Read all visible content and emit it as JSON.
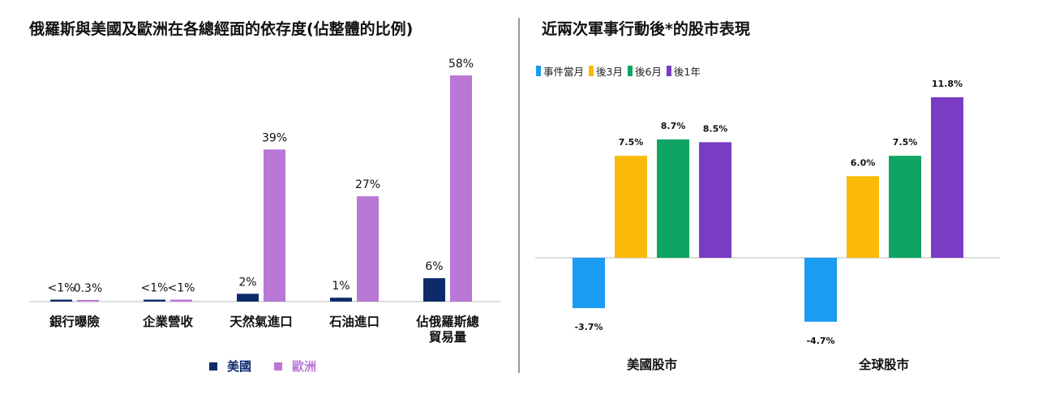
{
  "left": {
    "title": "俄羅斯與美國及歐洲在各總經面的依存度(佔整體的比例)",
    "chart_data": {
      "type": "bar",
      "categories": [
        "銀行曝險",
        "企業營收",
        "天然氣進口",
        "石油進口",
        "佔俄羅斯總\n貿易量"
      ],
      "series": [
        {
          "name": "美國",
          "color": "#0d2b6b",
          "values": [
            0.5,
            0.5,
            2,
            1,
            6
          ],
          "labels": [
            "<1%",
            "<1%",
            "2%",
            "1%",
            "6%"
          ]
        },
        {
          "name": "歐洲",
          "color": "#b977d6",
          "values": [
            0.3,
            0.5,
            39,
            27,
            58
          ],
          "labels": [
            "0.3%",
            "<1%",
            "39%",
            "27%",
            "58%"
          ]
        }
      ],
      "ylim": [
        0,
        58
      ],
      "legend": "bottom"
    }
  },
  "right": {
    "title": "近兩次軍事行動後*的股市表現",
    "chart_data": {
      "type": "bar",
      "categories": [
        "美國股市",
        "全球股市"
      ],
      "series": [
        {
          "name": "事件當月",
          "color": "#1a9cf2",
          "values": [
            -3.7,
            -4.7
          ],
          "labels": [
            "-3.7%",
            "-4.7%"
          ]
        },
        {
          "name": "後3月",
          "color": "#fbb909",
          "values": [
            7.5,
            6.0
          ],
          "labels": [
            "7.5%",
            "6.0%"
          ]
        },
        {
          "name": "後6月",
          "color": "#0fa463",
          "values": [
            8.7,
            7.5
          ],
          "labels": [
            "8.7%",
            "7.5%"
          ]
        },
        {
          "name": "後1年",
          "color": "#7a3cc2",
          "values": [
            8.5,
            11.8
          ],
          "labels": [
            "8.5%",
            "11.8%"
          ]
        }
      ],
      "ylim": [
        -4.7,
        11.8
      ],
      "legend": "top-left"
    }
  }
}
